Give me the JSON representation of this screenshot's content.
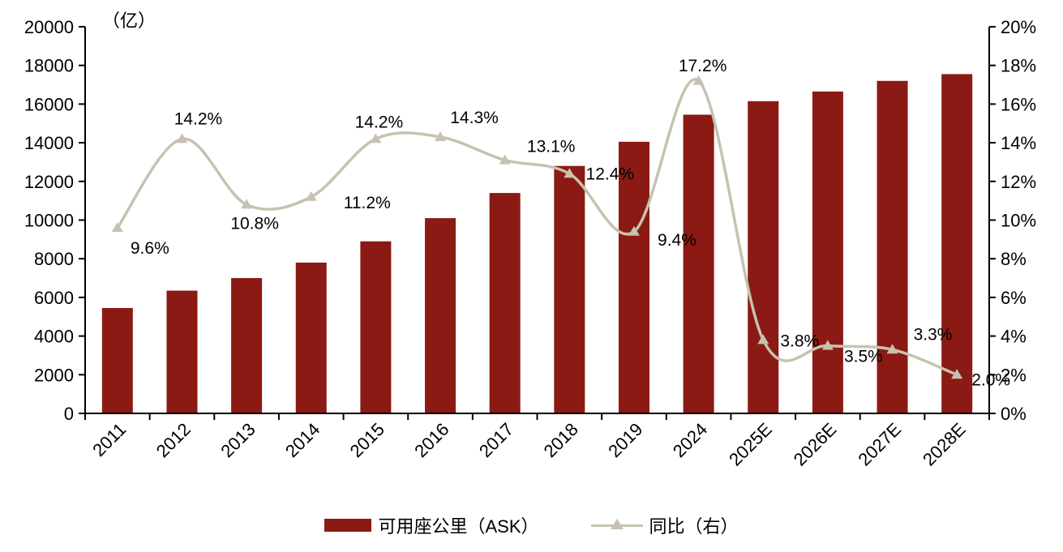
{
  "unit_label": "（亿）",
  "legend": {
    "bar_label": "可用座公里（ASK）",
    "line_label": "同比（右）"
  },
  "colors": {
    "bar": "#8a1a13",
    "line": "#c7c2b0",
    "axis": "#000000",
    "text": "#000000"
  },
  "chart_data": {
    "type": "bar",
    "combo": "bar+line",
    "title": "",
    "categories": [
      "2011",
      "2012",
      "2013",
      "2014",
      "2015",
      "2016",
      "2017",
      "2018",
      "2019",
      "2024",
      "2025E",
      "2026E",
      "2027E",
      "2028E"
    ],
    "series": [
      {
        "name": "可用座公里（ASK）",
        "type": "bar",
        "axis": "left",
        "values": [
          5450,
          6350,
          7000,
          7800,
          8900,
          10100,
          11400,
          12800,
          14050,
          15450,
          16150,
          16650,
          17200,
          17550
        ]
      },
      {
        "name": "同比（右）",
        "type": "line",
        "axis": "right",
        "values": [
          9.6,
          14.2,
          10.8,
          11.2,
          14.2,
          14.3,
          13.1,
          12.4,
          9.4,
          17.2,
          3.8,
          3.5,
          3.3,
          2.0
        ],
        "labels": [
          "9.6%",
          "14.2%",
          "10.8%",
          "11.2%",
          "14.2%",
          "14.3%",
          "13.1%",
          "12.4%",
          "9.4%",
          "17.2%",
          "3.8%",
          "3.5%",
          "3.3%",
          "2.0%"
        ]
      }
    ],
    "left_axis": {
      "unit": "（亿）",
      "min": 0,
      "max": 20000,
      "step": 2000,
      "tick_labels": [
        "0",
        "2000",
        "4000",
        "6000",
        "8000",
        "10000",
        "12000",
        "14000",
        "16000",
        "18000",
        "20000"
      ]
    },
    "right_axis": {
      "min": 0,
      "max": 20,
      "step": 2,
      "suffix": "%",
      "tick_labels": [
        "0%",
        "2%",
        "4%",
        "6%",
        "8%",
        "10%",
        "12%",
        "14%",
        "16%",
        "18%",
        "20%"
      ]
    },
    "grid": false,
    "legend_position": "bottom"
  }
}
